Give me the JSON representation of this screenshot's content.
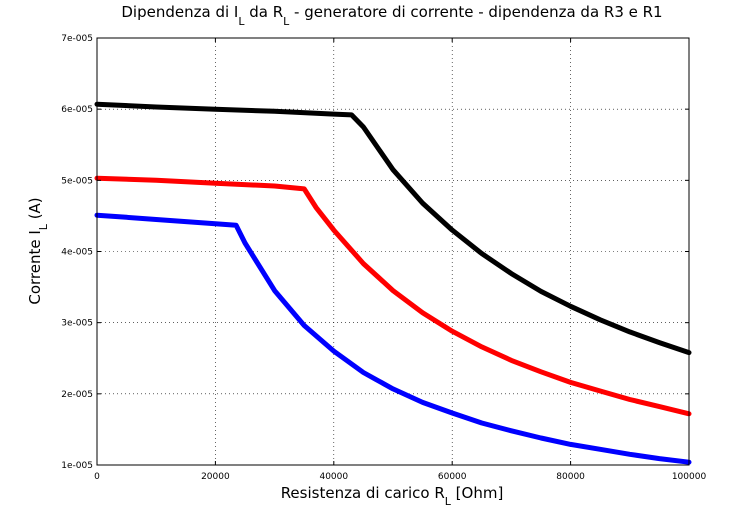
{
  "chart_data": {
    "type": "line",
    "title": {
      "prefix": "Dipendenza di I",
      "sub1": "L",
      "mid": " da R",
      "sub2": "L",
      "suffix": " - generatore di corrente - dipendenza da R3 e R1"
    },
    "xlabel": {
      "prefix": "Resistenza di carico R",
      "sub": "L",
      "suffix": " [Ohm]"
    },
    "ylabel": {
      "prefix": "Corrente I",
      "sub": "L",
      "suffix": " (A)"
    },
    "xlim": [
      0,
      100000
    ],
    "ylim": [
      1e-05,
      7e-05
    ],
    "x_ticks": [
      0,
      20000,
      40000,
      60000,
      80000,
      100000
    ],
    "x_tick_labels": [
      "0",
      "20000",
      "40000",
      "60000",
      "80000",
      "100000"
    ],
    "y_ticks": [
      1e-05,
      2e-05,
      3e-05,
      4e-05,
      5e-05,
      6e-05,
      7e-05
    ],
    "y_tick_labels": [
      "1e-005",
      "2e-005",
      "3e-005",
      "4e-005",
      "5e-005",
      "6e-005",
      "7e-005"
    ],
    "grid": true,
    "series": [
      {
        "color": "#000000",
        "x": [
          0,
          10000,
          20000,
          30000,
          40000,
          43000,
          45000,
          50000,
          55000,
          60000,
          65000,
          70000,
          75000,
          80000,
          85000,
          90000,
          95000,
          100000
        ],
        "y": [
          6.07e-05,
          6.03e-05,
          6e-05,
          5.97e-05,
          5.93e-05,
          5.92e-05,
          5.75e-05,
          5.15e-05,
          4.68e-05,
          4.3e-05,
          3.97e-05,
          3.69e-05,
          3.44e-05,
          3.23e-05,
          3.04e-05,
          2.87e-05,
          2.72e-05,
          2.58e-05
        ]
      },
      {
        "color": "#ff0000",
        "x": [
          0,
          10000,
          20000,
          30000,
          35000,
          37000,
          40000,
          45000,
          50000,
          55000,
          60000,
          65000,
          70000,
          75000,
          80000,
          85000,
          90000,
          95000,
          100000
        ],
        "y": [
          5.03e-05,
          5e-05,
          4.96e-05,
          4.92e-05,
          4.88e-05,
          4.62e-05,
          4.3e-05,
          3.83e-05,
          3.45e-05,
          3.14e-05,
          2.88e-05,
          2.66e-05,
          2.47e-05,
          2.31e-05,
          2.16e-05,
          2.04e-05,
          1.92e-05,
          1.82e-05,
          1.72e-05
        ]
      },
      {
        "color": "#0000ff",
        "x": [
          0,
          5000,
          10000,
          15000,
          20000,
          23500,
          25000,
          30000,
          35000,
          40000,
          45000,
          50000,
          55000,
          60000,
          65000,
          70000,
          75000,
          80000,
          85000,
          90000,
          95000,
          100000
        ],
        "y": [
          4.51e-05,
          4.48e-05,
          4.45e-05,
          4.42e-05,
          4.39e-05,
          4.37e-05,
          4.12e-05,
          3.45e-05,
          2.96e-05,
          2.6e-05,
          2.3e-05,
          2.07e-05,
          1.88e-05,
          1.73e-05,
          1.59e-05,
          1.48e-05,
          1.38e-05,
          1.29e-05,
          1.22e-05,
          1.15e-05,
          1.09e-05,
          1.04e-05
        ]
      }
    ]
  }
}
